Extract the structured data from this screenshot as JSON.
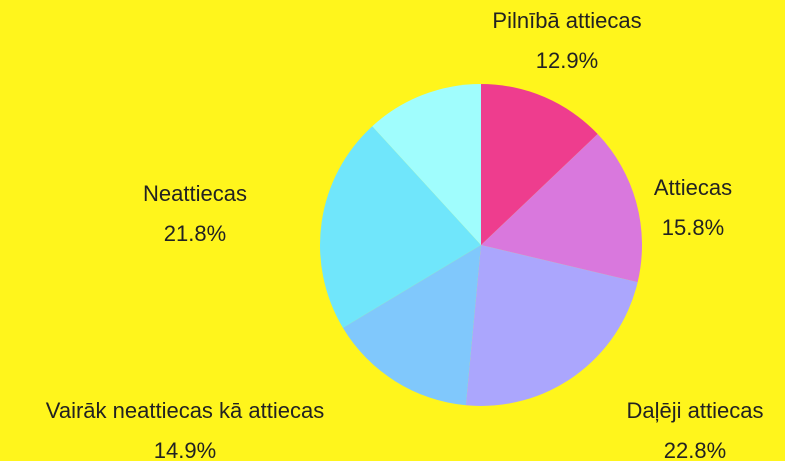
{
  "chart_data": {
    "type": "pie",
    "categories": [
      "Pilnībā attiecas",
      "Attiecas",
      "Daļēji attiecas",
      "Vairāk neattiecas kā attiecas",
      "Neattiecas",
      null
    ],
    "values": [
      12.9,
      15.8,
      22.8,
      14.9,
      21.8,
      11.8
    ],
    "value_labels": [
      "12.9%",
      "15.8%",
      "22.8%",
      "14.9%",
      "21.8%",
      null
    ],
    "colors": [
      "#ee3d8e",
      "#d978dd",
      "#aba6fd",
      "#80c8fc",
      "#70e6fb",
      "#a0fdfd"
    ]
  }
}
